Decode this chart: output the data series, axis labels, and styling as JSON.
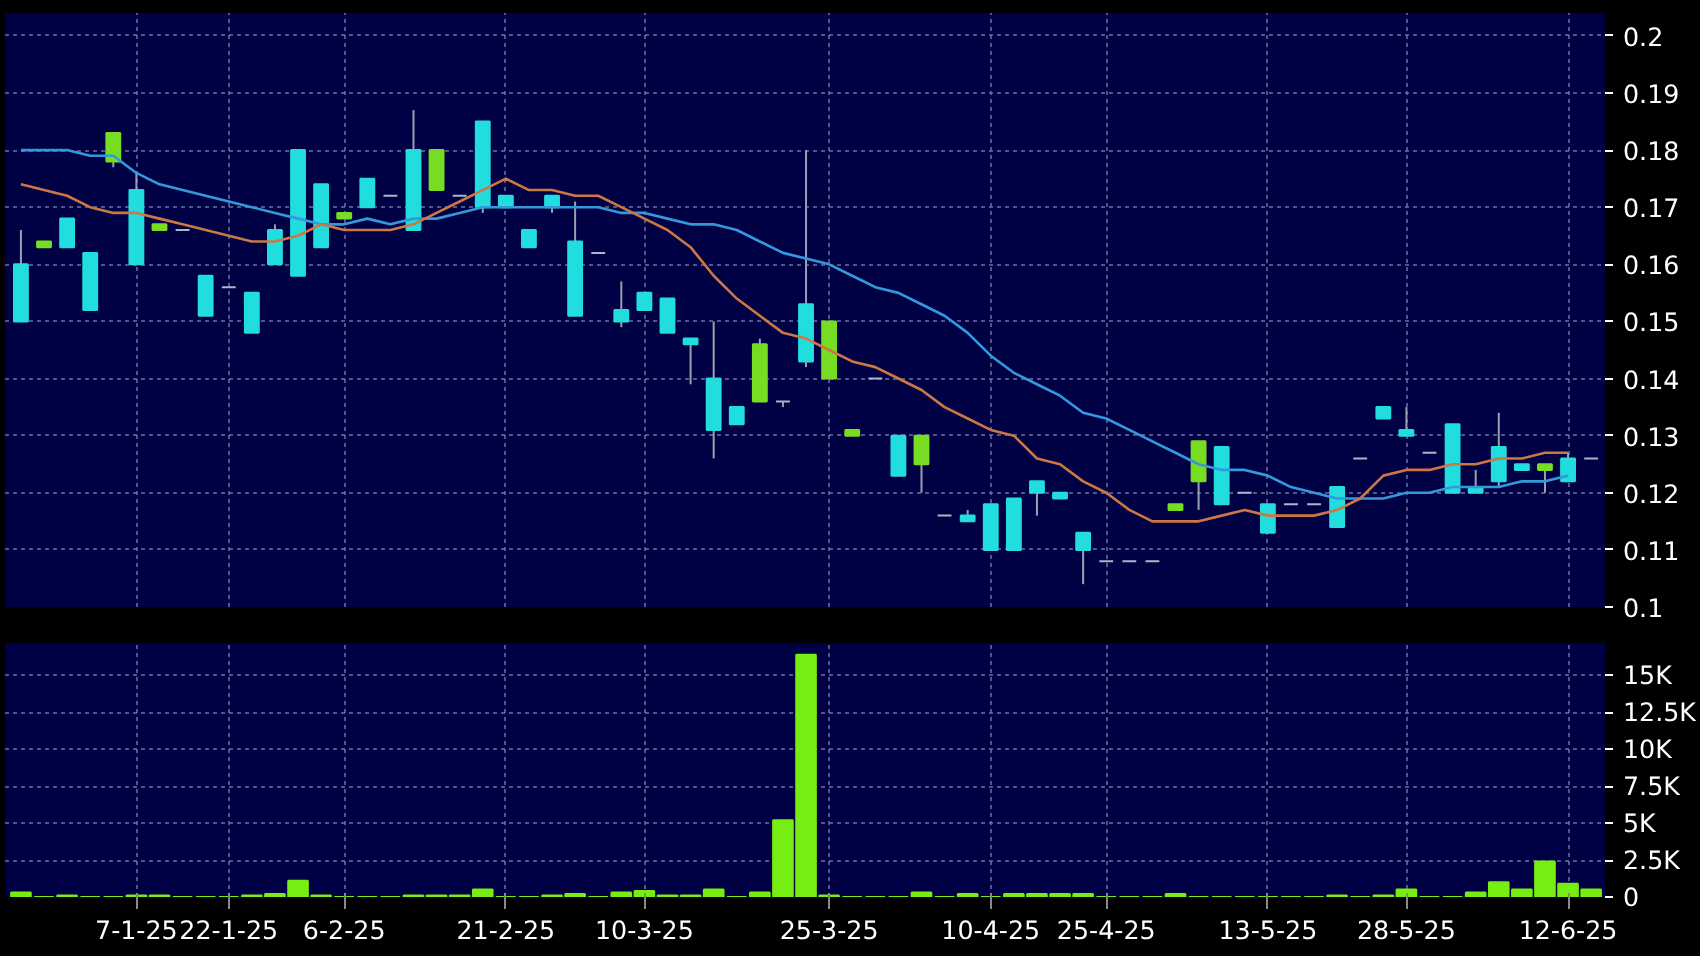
{
  "chart_data": [
    {
      "type": "candlestick",
      "categories": [
        null,
        null,
        null,
        null,
        null,
        null,
        null,
        null,
        null,
        null,
        null,
        null,
        null,
        null,
        null,
        null,
        null,
        null,
        null,
        null,
        null,
        null,
        null,
        null,
        null,
        null,
        null,
        null,
        null,
        null,
        null,
        null,
        null,
        null,
        null,
        null,
        null,
        null,
        null,
        null,
        null,
        null,
        null,
        null,
        null,
        null,
        null,
        null,
        null,
        null,
        null,
        null,
        null,
        null,
        null,
        null,
        null,
        null,
        null,
        null,
        null,
        null,
        null,
        null,
        null,
        null,
        null,
        null,
        null
      ],
      "ohlc": [
        [
          0.15,
          0.166,
          0.15,
          0.16
        ],
        [
          0.164,
          0.164,
          0.163,
          0.163
        ],
        [
          0.163,
          0.168,
          0.163,
          0.168
        ],
        [
          0.152,
          0.162,
          0.152,
          0.162
        ],
        [
          0.183,
          0.183,
          0.177,
          0.178
        ],
        [
          0.16,
          0.176,
          0.16,
          0.173
        ],
        [
          0.167,
          0.167,
          0.166,
          0.166
        ],
        [
          0.166,
          0.166,
          0.166,
          0.166
        ],
        [
          0.151,
          0.158,
          0.151,
          0.158
        ],
        [
          0.156,
          0.156,
          0.156,
          0.156
        ],
        [
          0.148,
          0.155,
          0.148,
          0.155
        ],
        [
          0.16,
          0.167,
          0.16,
          0.166
        ],
        [
          0.158,
          0.18,
          0.158,
          0.18
        ],
        [
          0.163,
          0.174,
          0.163,
          0.174
        ],
        [
          0.169,
          0.169,
          0.168,
          0.168
        ],
        [
          0.17,
          0.175,
          0.17,
          0.175
        ],
        [
          0.172,
          0.172,
          0.172,
          0.172
        ],
        [
          0.166,
          0.187,
          0.166,
          0.18
        ],
        [
          0.18,
          0.18,
          0.173,
          0.173
        ],
        [
          0.172,
          0.172,
          0.172,
          0.172
        ],
        [
          0.17,
          0.185,
          0.169,
          0.185
        ],
        [
          0.17,
          0.172,
          0.17,
          0.172
        ],
        [
          0.163,
          0.166,
          0.163,
          0.166
        ],
        [
          0.17,
          0.172,
          0.169,
          0.172
        ],
        [
          0.151,
          0.171,
          0.151,
          0.164
        ],
        [
          0.162,
          0.162,
          0.162,
          0.162
        ],
        [
          0.15,
          0.157,
          0.149,
          0.152
        ],
        [
          0.152,
          0.155,
          0.152,
          0.155
        ],
        [
          0.148,
          0.154,
          0.148,
          0.154
        ],
        [
          0.146,
          0.147,
          0.139,
          0.147
        ],
        [
          0.131,
          0.15,
          0.126,
          0.14
        ],
        [
          0.132,
          0.135,
          0.132,
          0.135
        ],
        [
          0.146,
          0.147,
          0.136,
          0.136
        ],
        [
          0.136,
          0.136,
          0.135,
          0.136
        ],
        [
          0.143,
          0.18,
          0.142,
          0.153
        ],
        [
          0.15,
          0.15,
          0.14,
          0.14
        ],
        [
          0.131,
          0.131,
          0.13,
          0.13
        ],
        [
          0.14,
          0.14,
          0.14,
          0.14
        ],
        [
          0.123,
          0.13,
          0.123,
          0.13
        ],
        [
          0.13,
          0.13,
          0.12,
          0.125
        ],
        [
          0.116,
          0.116,
          0.116,
          0.116
        ],
        [
          0.115,
          0.117,
          0.115,
          0.116
        ],
        [
          0.11,
          0.118,
          0.11,
          0.118
        ],
        [
          0.11,
          0.119,
          0.11,
          0.119
        ],
        [
          0.12,
          0.122,
          0.116,
          0.122
        ],
        [
          0.119,
          0.12,
          0.119,
          0.12
        ],
        [
          0.11,
          0.113,
          0.104,
          0.113
        ],
        [
          0.108,
          0.108,
          0.108,
          0.108
        ],
        [
          0.108,
          0.108,
          0.108,
          0.108
        ],
        [
          0.108,
          0.108,
          0.108,
          0.108
        ],
        [
          0.118,
          0.118,
          0.117,
          0.117
        ],
        [
          0.129,
          0.129,
          0.117,
          0.122
        ],
        [
          0.118,
          0.128,
          0.118,
          0.128
        ],
        [
          0.12,
          0.12,
          0.12,
          0.12
        ],
        [
          0.113,
          0.118,
          0.113,
          0.118
        ],
        [
          0.118,
          0.118,
          0.118,
          0.118
        ],
        [
          0.118,
          0.118,
          0.118,
          0.118
        ],
        [
          0.114,
          0.121,
          0.114,
          0.121
        ],
        [
          0.126,
          0.126,
          0.126,
          0.126
        ],
        [
          0.133,
          0.135,
          0.133,
          0.135
        ],
        [
          0.13,
          0.135,
          0.13,
          0.131
        ],
        [
          0.127,
          0.127,
          0.127,
          0.127
        ],
        [
          0.12,
          0.132,
          0.12,
          0.132
        ],
        [
          0.12,
          0.124,
          0.12,
          0.121
        ],
        [
          0.122,
          0.134,
          0.121,
          0.128
        ],
        [
          0.124,
          0.125,
          0.124,
          0.125
        ],
        [
          0.125,
          0.125,
          0.12,
          0.124
        ],
        [
          0.122,
          0.127,
          0.122,
          0.126
        ],
        [
          0.126,
          0.126,
          0.126,
          0.126
        ]
      ],
      "colors": [
        "#22dddd",
        "#77dd22",
        "#22dddd",
        "#22dddd",
        "#77dd22",
        "#22dddd",
        "#77dd22",
        "#a8b8c8",
        "#22dddd",
        "#a8b8c8",
        "#22dddd",
        "#22dddd",
        "#22dddd",
        "#22dddd",
        "#77dd22",
        "#22dddd",
        "#a8b8c8",
        "#22dddd",
        "#77dd22",
        "#a8b8c8",
        "#22dddd",
        "#22dddd",
        "#22dddd",
        "#22dddd",
        "#22dddd",
        "#a8b8c8",
        "#22dddd",
        "#22dddd",
        "#22dddd",
        "#22dddd",
        "#22dddd",
        "#22dddd",
        "#77dd22",
        "#a8b8c8",
        "#22dddd",
        "#77dd22",
        "#77dd22",
        "#a8b8c8",
        "#22dddd",
        "#77dd22",
        "#a8b8c8",
        "#22dddd",
        "#22dddd",
        "#22dddd",
        "#22dddd",
        "#22dddd",
        "#22dddd",
        "#a8b8c8",
        "#a8b8c8",
        "#a8b8c8",
        "#77dd22",
        "#77dd22",
        "#22dddd",
        "#a8b8c8",
        "#22dddd",
        "#a8b8c8",
        "#a8b8c8",
        "#22dddd",
        "#a8b8c8",
        "#22dddd",
        "#22dddd",
        "#a8b8c8",
        "#22dddd",
        "#22dddd",
        "#22dddd",
        "#22dddd",
        "#77dd22",
        "#22dddd",
        "#a8b8c8"
      ],
      "series": [
        {
          "type": "line",
          "color": "#3399dd",
          "values": [
            0.18,
            0.18,
            0.18,
            0.179,
            0.179,
            0.176,
            0.174,
            0.173,
            0.172,
            0.171,
            0.17,
            0.169,
            0.168,
            0.167,
            0.167,
            0.168,
            0.167,
            0.168,
            0.168,
            0.169,
            0.17,
            0.17,
            0.17,
            0.17,
            0.17,
            0.17,
            0.169,
            0.169,
            0.168,
            0.167,
            0.167,
            0.166,
            0.164,
            0.162,
            0.161,
            0.16,
            0.158,
            0.156,
            0.155,
            0.153,
            0.151,
            0.148,
            0.144,
            0.141,
            0.139,
            0.137,
            0.134,
            0.133,
            0.131,
            0.129,
            0.127,
            0.125,
            0.124,
            0.124,
            0.123,
            0.121,
            0.12,
            0.119,
            0.119,
            0.119,
            0.12,
            0.12,
            0.121,
            0.121,
            0.121,
            0.122,
            0.122,
            0.123,
            null
          ]
        },
        {
          "type": "line",
          "color": "#cc7744",
          "values": [
            0.174,
            0.173,
            0.172,
            0.17,
            0.169,
            0.169,
            0.168,
            0.167,
            0.166,
            0.165,
            0.164,
            0.164,
            0.165,
            0.167,
            0.166,
            0.166,
            0.166,
            0.167,
            0.169,
            0.171,
            0.173,
            0.175,
            0.173,
            0.173,
            0.172,
            0.172,
            0.17,
            0.168,
            0.166,
            0.163,
            0.158,
            0.154,
            0.151,
            0.148,
            0.147,
            0.145,
            0.143,
            0.142,
            0.14,
            0.138,
            0.135,
            0.133,
            0.131,
            0.13,
            0.126,
            0.125,
            0.122,
            0.12,
            0.117,
            0.115,
            0.115,
            0.115,
            0.116,
            0.117,
            0.116,
            0.116,
            0.116,
            0.117,
            0.119,
            0.123,
            0.124,
            0.124,
            0.125,
            0.125,
            0.126,
            0.126,
            0.127,
            0.127,
            null
          ]
        }
      ],
      "ylim": [
        0.1,
        0.204
      ],
      "yticks": [
        0.1,
        0.11,
        0.12,
        0.13,
        0.14,
        0.15,
        0.16,
        0.17,
        0.18,
        0.19,
        0.2
      ],
      "grid": true,
      "tick_labels": "y"
    },
    {
      "type": "bar",
      "categories": [
        null,
        null,
        null,
        null,
        null,
        "7-1-25",
        null,
        null,
        null,
        "22-1-25",
        null,
        null,
        null,
        null,
        "6-2-25",
        null,
        null,
        null,
        null,
        null,
        null,
        "21-2-25",
        null,
        null,
        null,
        null,
        null,
        "10-3-25",
        null,
        null,
        null,
        null,
        null,
        null,
        null,
        "25-3-25",
        null,
        null,
        null,
        null,
        null,
        null,
        "10-4-25",
        null,
        null,
        null,
        null,
        "25-4-25",
        null,
        null,
        null,
        null,
        null,
        null,
        "13-5-25",
        null,
        null,
        null,
        null,
        null,
        "28-5-25",
        null,
        null,
        null,
        null,
        null,
        null,
        "12-6-25",
        null
      ],
      "values": [
        300,
        0,
        100,
        0,
        0,
        100,
        100,
        0,
        0,
        0,
        100,
        200,
        1100,
        100,
        0,
        0,
        0,
        100,
        100,
        100,
        500,
        0,
        0,
        100,
        200,
        0,
        300,
        400,
        100,
        100,
        500,
        0,
        300,
        5200,
        16400,
        100,
        0,
        0,
        0,
        300,
        0,
        200,
        0,
        200,
        200,
        200,
        200,
        0,
        0,
        0,
        200,
        0,
        0,
        0,
        0,
        0,
        0,
        100,
        0,
        100,
        500,
        0,
        0,
        300,
        1000,
        500,
        2400,
        900,
        500
      ],
      "color": "#77ee11",
      "ylim": [
        0,
        17200
      ],
      "yticks": [
        0,
        {
          "value": 2500,
          "label": "2.5K"
        },
        {
          "value": 5000,
          "label": "5K"
        },
        {
          "value": 7500,
          "label": "7.5K"
        },
        {
          "value": 10000,
          "label": "10K"
        },
        {
          "value": 12500,
          "label": "12.5K"
        },
        {
          "value": 15000,
          "label": "15K"
        }
      ],
      "grid": true
    }
  ]
}
